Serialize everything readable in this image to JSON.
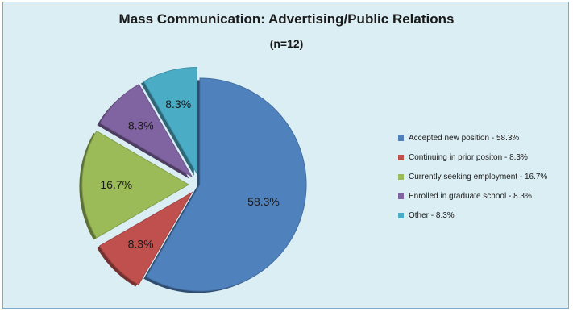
{
  "chart_data": {
    "type": "pie",
    "title": "Mass Communication: Advertising/Public Relations",
    "subtitle": "(n=12)",
    "slices": [
      {
        "label": "Accepted new position - 58.3%",
        "value": 58.3,
        "data_label": "58.3%",
        "color": "#4f81bd"
      },
      {
        "label": "Continuing in prior positon - 8.3%",
        "value": 8.3,
        "data_label": "8.3%",
        "color": "#c0504d"
      },
      {
        "label": "Currently seeking employment - 16.7%",
        "value": 16.7,
        "data_label": "16.7%",
        "color": "#9bbb59"
      },
      {
        "label": "Enrolled in graduate school - 8.3%",
        "value": 8.3,
        "data_label": "8.3%",
        "color": "#8064a2"
      },
      {
        "label": "Other - 8.3%",
        "value": 8.3,
        "data_label": "8.3%",
        "color": "#4bacc6"
      }
    ],
    "legend_position": "right",
    "exploded": true
  }
}
